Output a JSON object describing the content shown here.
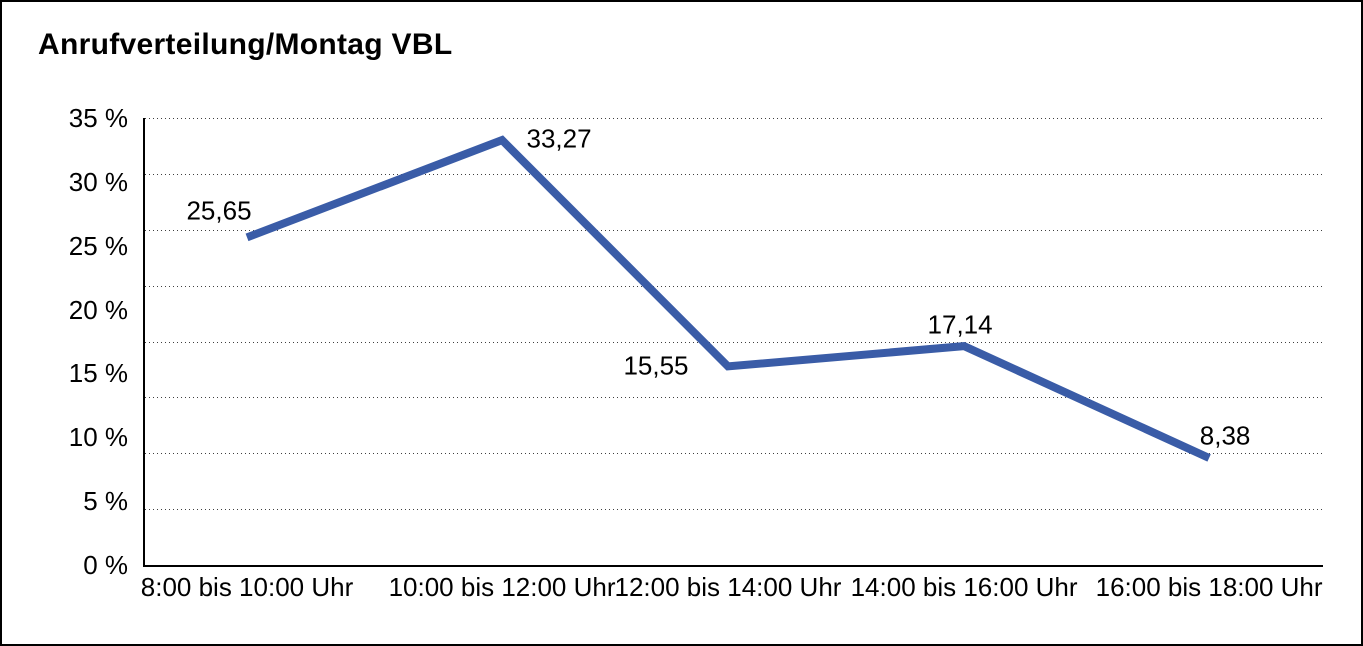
{
  "title": "Anrufverteilung/Montag VBL",
  "chart_data": {
    "type": "line",
    "title": "Anrufverteilung/Montag VBL",
    "categories": [
      "8:00 bis 10:00 Uhr",
      "10:00 bis 12:00 Uhr",
      "12:00 bis 14:00 Uhr",
      "14:00 bis 16:00 Uhr",
      "16:00 bis 18:00 Uhr"
    ],
    "values": [
      25.65,
      33.27,
      15.55,
      17.14,
      8.38
    ],
    "value_labels": [
      "25,65",
      "33,27",
      "15,55",
      "17,14",
      "8,38"
    ],
    "xlabel": "",
    "ylabel": "",
    "ylim": [
      0,
      35
    ],
    "ytick_step": 5,
    "ytick_labels": [
      "0 %",
      "5 %",
      "10 %",
      "15 %",
      "20 %",
      "25 %",
      "30 %",
      "35 %"
    ],
    "grid": "horizontal-dotted",
    "gridline_intervals": 8,
    "legend_position": "none",
    "line_color": "#3A5CA7",
    "axis_color": "#000000",
    "grid_color": "#3F3F3F",
    "background_color": "#FFFFFF"
  }
}
